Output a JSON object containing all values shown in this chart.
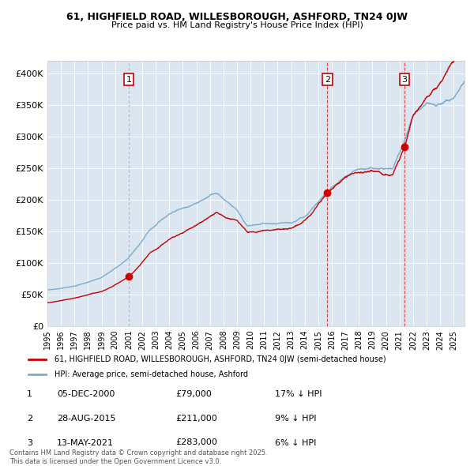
{
  "title_line1": "61, HIGHFIELD ROAD, WILLESBOROUGH, ASHFORD, TN24 0JW",
  "title_line2": "Price paid vs. HM Land Registry's House Price Index (HPI)",
  "bg_color": "#dce6f0",
  "red_color": "#cc0000",
  "blue_color": "#7aabcf",
  "sale1": {
    "date_num": 2001.0,
    "price": 79000,
    "label": "1",
    "date_str": "05-DEC-2000",
    "pct": "17% ↓ HPI"
  },
  "sale2": {
    "date_num": 2015.67,
    "price": 211000,
    "label": "2",
    "date_str": "28-AUG-2015",
    "pct": "9% ↓ HPI"
  },
  "sale3": {
    "date_num": 2021.37,
    "price": 283000,
    "label": "3",
    "date_str": "13-MAY-2021",
    "pct": "6% ↓ HPI"
  },
  "ylim": [
    0,
    420000
  ],
  "xlim_start": 1995.0,
  "xlim_end": 2025.8,
  "yticks": [
    0,
    50000,
    100000,
    150000,
    200000,
    250000,
    300000,
    350000,
    400000
  ],
  "ytick_labels": [
    "£0",
    "£50K",
    "£100K",
    "£150K",
    "£200K",
    "£250K",
    "£300K",
    "£350K",
    "£400K"
  ],
  "legend_label_red": "61, HIGHFIELD ROAD, WILLESBOROUGH, ASHFORD, TN24 0JW (semi-detached house)",
  "legend_label_blue": "HPI: Average price, semi-detached house, Ashford",
  "footnote": "Contains HM Land Registry data © Crown copyright and database right 2025.\nThis data is licensed under the Open Government Licence v3.0."
}
